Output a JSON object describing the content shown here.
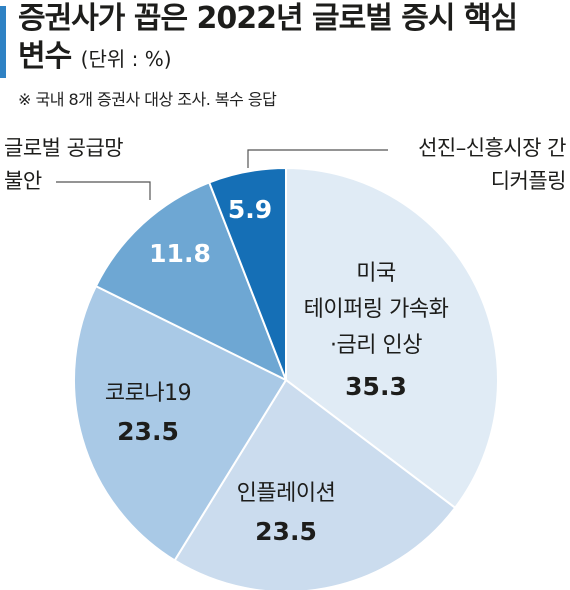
{
  "header": {
    "title_line1": "증권사가 꼽은 2022년 글로벌 증시 핵심",
    "title_line2": "변수",
    "unit": "(단위 : %)",
    "note": "※ 국내 8개 증권사 대상 조사. 복수 응답"
  },
  "chart_data": {
    "type": "pie",
    "start_angle_deg": 0,
    "direction": "clockwise",
    "slices": [
      {
        "label_lines": [
          "미국",
          "테이퍼링 가속화",
          "·금리 인상"
        ],
        "value": 35.3,
        "color": "#e0ebf5",
        "value_color": "#1d1d1b"
      },
      {
        "label_lines": [
          "인플레이션"
        ],
        "value": 23.5,
        "color": "#cbdcee",
        "value_color": "#1d1d1b"
      },
      {
        "label_lines": [
          "코로나19"
        ],
        "value": 23.5,
        "color": "#a9c9e6",
        "value_color": "#1d1d1b"
      },
      {
        "label_lines": [
          "글로벌 공급망",
          "불안"
        ],
        "value": 11.8,
        "color": "#6ea7d3",
        "value_color": "#ffffff"
      },
      {
        "label_lines": [
          "선진–신흥시장 간",
          "디커플링"
        ],
        "value": 5.9,
        "color": "#156fb6",
        "value_color": "#ffffff"
      }
    ]
  }
}
